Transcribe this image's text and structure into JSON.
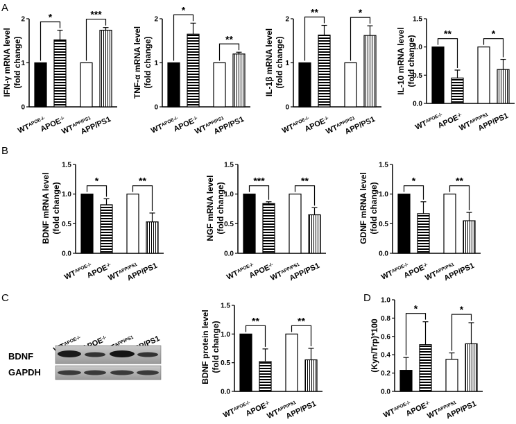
{
  "panel_labels": [
    "A",
    "B",
    "C",
    "D"
  ],
  "groups": [
    {
      "base": "WT",
      "sup": "APOE-/-"
    },
    {
      "base": "APOE",
      "sup": "-/-"
    },
    {
      "base": "WT",
      "sup": "APP/PS1"
    },
    {
      "base": "APP/PS1",
      "sup": ""
    }
  ],
  "western_blot": {
    "rows": [
      "BDNF",
      "GAPDH"
    ]
  },
  "colors": {
    "black": "#000000",
    "white": "#ffffff"
  },
  "chart_data": [
    {
      "id": "ifn",
      "type": "bar",
      "ylabel": [
        "IFN-γ mRNA level",
        "(fold change)"
      ],
      "ylim": [
        0,
        2
      ],
      "yticks": [
        "0",
        "1",
        "2"
      ],
      "values": [
        1.0,
        1.52,
        1.0,
        1.74
      ],
      "errors": [
        0,
        0.22,
        0,
        0.06
      ],
      "comparisons": [
        {
          "pair": [
            0,
            1
          ],
          "label": "*"
        },
        {
          "pair": [
            2,
            3
          ],
          "label": "***"
        }
      ]
    },
    {
      "id": "tnf",
      "type": "bar",
      "ylabel": [
        "TNF-α mRNA level",
        "(fold change)"
      ],
      "ylim": [
        0,
        2
      ],
      "yticks": [
        "0",
        "1",
        "2"
      ],
      "values": [
        1.0,
        1.65,
        1.0,
        1.2
      ],
      "errors": [
        0,
        0.25,
        0,
        0.04
      ],
      "comparisons": [
        {
          "pair": [
            0,
            1
          ],
          "label": "*"
        },
        {
          "pair": [
            2,
            3
          ],
          "label": "**"
        }
      ]
    },
    {
      "id": "il1b",
      "type": "bar",
      "ylabel": [
        "IL-1β mRNA level",
        "(fold change)"
      ],
      "ylim": [
        0,
        2
      ],
      "yticks": [
        "0",
        "1",
        "2"
      ],
      "values": [
        1.0,
        1.63,
        1.0,
        1.62
      ],
      "errors": [
        0,
        0.22,
        0,
        0.22
      ],
      "comparisons": [
        {
          "pair": [
            0,
            1
          ],
          "label": "**"
        },
        {
          "pair": [
            2,
            3
          ],
          "label": "*"
        }
      ]
    },
    {
      "id": "il10",
      "type": "bar",
      "ylabel": [
        "IL-10 mRNA level",
        "(fold change)"
      ],
      "ylim": [
        0,
        1.5
      ],
      "yticks": [
        "0.0",
        "0.5",
        "1.0",
        "1.5"
      ],
      "values": [
        1.0,
        0.45,
        1.0,
        0.6
      ],
      "errors": [
        0,
        0.14,
        0,
        0.18
      ],
      "comparisons": [
        {
          "pair": [
            0,
            1
          ],
          "label": "**"
        },
        {
          "pair": [
            2,
            3
          ],
          "label": "*"
        }
      ]
    },
    {
      "id": "bdnf",
      "type": "bar",
      "ylabel": [
        "BDNF mRNA level",
        "(fold change)"
      ],
      "ylim": [
        0,
        1.5
      ],
      "yticks": [
        "0.0",
        "0.5",
        "1.0",
        "1.5"
      ],
      "values": [
        1.0,
        0.82,
        1.0,
        0.53
      ],
      "errors": [
        0,
        0.1,
        0,
        0.15
      ],
      "comparisons": [
        {
          "pair": [
            0,
            1
          ],
          "label": "*"
        },
        {
          "pair": [
            2,
            3
          ],
          "label": "**"
        }
      ]
    },
    {
      "id": "ngf",
      "type": "bar",
      "ylabel": [
        "NGF mRNA level",
        "(fold change)"
      ],
      "ylim": [
        0,
        1.5
      ],
      "yticks": [
        "0.0",
        "0.5",
        "1.0",
        "1.5"
      ],
      "values": [
        1.0,
        0.84,
        1.0,
        0.65
      ],
      "errors": [
        0,
        0.03,
        0,
        0.12
      ],
      "comparisons": [
        {
          "pair": [
            0,
            1
          ],
          "label": "***"
        },
        {
          "pair": [
            2,
            3
          ],
          "label": "**"
        }
      ]
    },
    {
      "id": "gdnf",
      "type": "bar",
      "ylabel": [
        "GDNF mRNA level",
        "(fold change)"
      ],
      "ylim": [
        0,
        1.5
      ],
      "yticks": [
        "0.0",
        "0.5",
        "1.0",
        "1.5"
      ],
      "values": [
        1.0,
        0.67,
        1.0,
        0.55
      ],
      "errors": [
        0,
        0.2,
        0,
        0.14
      ],
      "comparisons": [
        {
          "pair": [
            0,
            1
          ],
          "label": "*"
        },
        {
          "pair": [
            2,
            3
          ],
          "label": "**"
        }
      ]
    },
    {
      "id": "bdnfp",
      "type": "bar",
      "ylabel": [
        "BDNF protein level",
        "(fold change)"
      ],
      "ylim": [
        0,
        1.5
      ],
      "yticks": [
        "0.0",
        "0.5",
        "1.0",
        "1.5"
      ],
      "values": [
        1.0,
        0.52,
        1.0,
        0.55
      ],
      "errors": [
        0,
        0.22,
        0,
        0.2
      ],
      "comparisons": [
        {
          "pair": [
            0,
            1
          ],
          "label": "**"
        },
        {
          "pair": [
            2,
            3
          ],
          "label": "**"
        }
      ]
    },
    {
      "id": "kyn",
      "type": "bar",
      "ylabel": [
        "(Kyn/Trp)*100"
      ],
      "ylim": [
        0,
        1.0
      ],
      "yticks": [
        "0.0",
        "0.2",
        "0.4",
        "0.6",
        "0.8",
        "1.0"
      ],
      "values": [
        0.23,
        0.51,
        0.35,
        0.52
      ],
      "errors": [
        0.14,
        0.25,
        0.07,
        0.23
      ],
      "comparisons": [
        {
          "pair": [
            0,
            1
          ],
          "label": "*"
        },
        {
          "pair": [
            2,
            3
          ],
          "label": "*"
        }
      ]
    }
  ]
}
